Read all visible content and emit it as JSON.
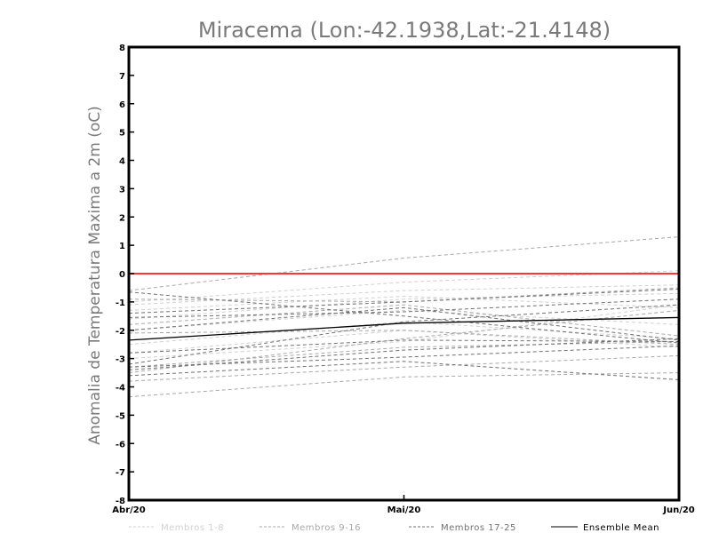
{
  "chart_data": {
    "type": "line",
    "title": "Miracema (Lon:-42.1938,Lat:-21.4148)",
    "ylabel": "Anomalia de Temperatura Maxima a 2m (oC)",
    "xlabel": "",
    "categories": [
      "Abr/20",
      "Mai/20",
      "Jun/20"
    ],
    "ylim": [
      -8,
      8
    ],
    "yticks": [
      "-8",
      "-7",
      "-6",
      "-5",
      "-4",
      "-3",
      "-2",
      "-1",
      "0",
      "1",
      "2",
      "3",
      "4",
      "5",
      "6",
      "7",
      "8"
    ],
    "reference_line": {
      "y": 0,
      "color": "#ff3333"
    },
    "legend": [
      {
        "label": "Membros 1-8",
        "color": "#d0d0d0",
        "dashed": true
      },
      {
        "label": "Membros 9-16",
        "color": "#a8a8a8",
        "dashed": true
      },
      {
        "label": "Membros 17-25",
        "color": "#707070",
        "dashed": true
      },
      {
        "label": "Ensemble Mean",
        "color": "#000000",
        "dashed": false
      }
    ],
    "series": [
      {
        "name": "m1",
        "group": 0,
        "values": [
          -1.0,
          -0.3,
          0.1
        ]
      },
      {
        "name": "m2",
        "group": 0,
        "values": [
          -1.3,
          -0.8,
          -1.2
        ]
      },
      {
        "name": "m3",
        "group": 0,
        "values": [
          -1.6,
          -0.9,
          -0.7
        ]
      },
      {
        "name": "m4",
        "group": 0,
        "values": [
          -2.0,
          -1.3,
          -1.8
        ]
      },
      {
        "name": "m5",
        "group": 0,
        "values": [
          -2.5,
          -1.7,
          -2.3
        ]
      },
      {
        "name": "m6",
        "group": 0,
        "values": [
          -2.8,
          -2.0,
          -2.6
        ]
      },
      {
        "name": "m7",
        "group": 0,
        "values": [
          -3.0,
          -2.4,
          -1.1
        ]
      },
      {
        "name": "m8",
        "group": 0,
        "values": [
          -1.1,
          -0.6,
          -0.4
        ]
      },
      {
        "name": "m9",
        "group": 1,
        "values": [
          -0.6,
          0.55,
          1.3
        ]
      },
      {
        "name": "m10",
        "group": 1,
        "values": [
          -0.9,
          -1.0,
          -0.5
        ]
      },
      {
        "name": "m11",
        "group": 1,
        "values": [
          -1.8,
          -1.1,
          -2.2
        ]
      },
      {
        "name": "m12",
        "group": 1,
        "values": [
          -2.1,
          -2.0,
          -2.5
        ]
      },
      {
        "name": "m13",
        "group": 1,
        "values": [
          -3.5,
          -2.3,
          -1.3
        ]
      },
      {
        "name": "m14",
        "group": 1,
        "values": [
          -3.8,
          -3.3,
          -2.9
        ]
      },
      {
        "name": "m15",
        "group": 1,
        "values": [
          -4.35,
          -3.65,
          -3.5
        ]
      },
      {
        "name": "m16",
        "group": 1,
        "values": [
          -3.3,
          -2.6,
          -2.4
        ]
      },
      {
        "name": "m17",
        "group": 2,
        "values": [
          -0.65,
          -1.5,
          -2.45
        ]
      },
      {
        "name": "m18",
        "group": 2,
        "values": [
          -1.4,
          -1.0,
          -0.55
        ]
      },
      {
        "name": "m19",
        "group": 2,
        "values": [
          -1.55,
          -1.35,
          -0.9
        ]
      },
      {
        "name": "m20",
        "group": 2,
        "values": [
          -2.0,
          -1.2,
          -2.35
        ]
      },
      {
        "name": "m21",
        "group": 2,
        "values": [
          -2.8,
          -2.35,
          -2.4
        ]
      },
      {
        "name": "m22",
        "group": 2,
        "values": [
          -3.2,
          -1.7,
          -1.1
        ]
      },
      {
        "name": "m23",
        "group": 2,
        "values": [
          -3.4,
          -2.7,
          -2.3
        ]
      },
      {
        "name": "m24",
        "group": 2,
        "values": [
          -3.6,
          -3.1,
          -3.75
        ]
      },
      {
        "name": "m25",
        "group": 2,
        "values": [
          -3.3,
          -2.95,
          -2.55
        ]
      },
      {
        "name": "Ensemble Mean",
        "group": 3,
        "values": [
          -2.35,
          -1.75,
          -1.55
        ]
      }
    ]
  }
}
